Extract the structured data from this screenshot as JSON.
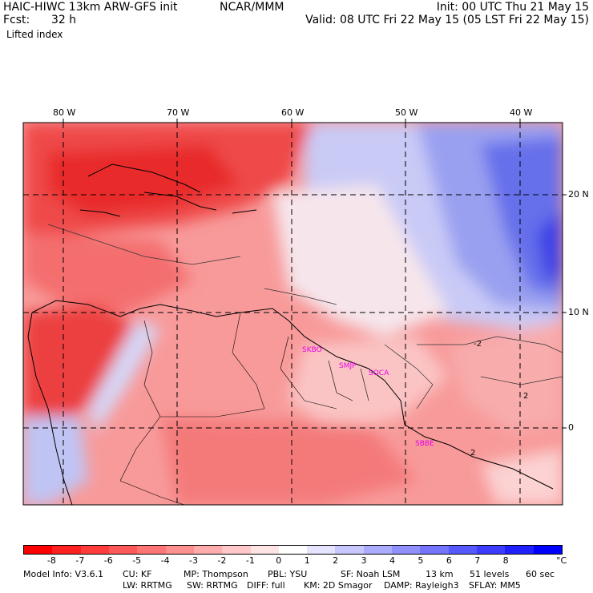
{
  "header": {
    "model_title": "HAIC-HIWC 13km ARW-GFS init",
    "org": "NCAR/MMM",
    "init": "Init: 00 UTC Thu 21 May 15",
    "fcst_label": "Fcst:",
    "fcst_value": "32 h",
    "valid": "Valid: 08 UTC Fri 22 May 15 (05 LST Fri 22 May 15)",
    "field_name": "Lifted index"
  },
  "map": {
    "lon_labels": [
      "80 W",
      "70 W",
      "60 W",
      "50 W",
      "40 W"
    ],
    "lat_labels": [
      "20 N",
      "10 N",
      "0"
    ],
    "contour_labels": [
      "-2",
      "2",
      "2"
    ],
    "station_labels": [
      "SKBO",
      "SMJP",
      "SOCA",
      "SBBE"
    ],
    "colors": {
      "strong_negative": "#ee3030",
      "negative": "#f46a6a",
      "weak_negative": "#fbbcbc",
      "near_zero": "#ffffff",
      "positive": "#c8c8f8",
      "strong_positive": "#3030ee",
      "station_label": "#e600e6"
    }
  },
  "colorbar": {
    "unit": "°C",
    "labels": [
      "-8",
      "-7",
      "-6",
      "-5",
      "-4",
      "-3",
      "-2",
      "-1",
      "0",
      "1",
      "2",
      "3",
      "4",
      "5",
      "6",
      "7",
      "8"
    ],
    "colors": [
      "#ff0000",
      "#ff2020",
      "#ff3c3c",
      "#ff5858",
      "#ff7474",
      "#ff9090",
      "#ffacac",
      "#ffc8c8",
      "#ffe4e4",
      "#ffffff",
      "#e4e4ff",
      "#c8c8ff",
      "#acacff",
      "#9090ff",
      "#7474ff",
      "#5858ff",
      "#3c3cff",
      "#2020ff",
      "#0000ff"
    ]
  },
  "model_info": {
    "line1": [
      "Model Info: V3.6.1",
      "CU: KF",
      "MP: Thompson",
      "PBL: YSU",
      "SF: Noah LSM",
      "13 km",
      "51 levels",
      "60 sec"
    ],
    "line2": [
      "LW: RRTMG",
      "SW: RRTMG",
      "DIFF: full",
      "KM: 2D Smagor",
      "DAMP: Rayleigh3",
      "SFLAY: MM5"
    ]
  }
}
